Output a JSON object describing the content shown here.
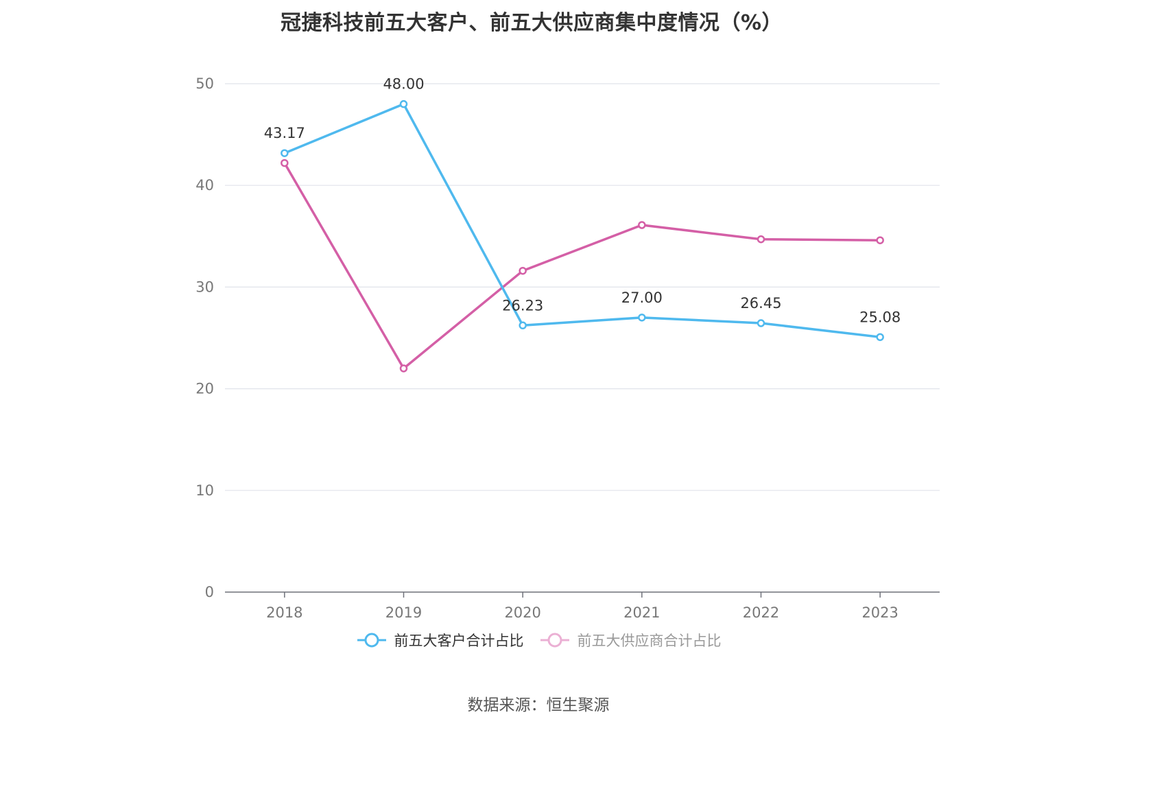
{
  "chart_data": {
    "type": "line",
    "title": "冠捷科技前五大客户、前五大供应商集中度情况（%）",
    "categories": [
      "2018",
      "2019",
      "2020",
      "2021",
      "2022",
      "2023"
    ],
    "series": [
      {
        "name": "前五大客户合计占比",
        "color": "#4fb9ee",
        "values": [
          43.17,
          48.0,
          26.23,
          27.0,
          26.45,
          25.08
        ],
        "labels": [
          "43.17",
          "48.00",
          "26.23",
          "27.00",
          "26.45",
          "25.08"
        ]
      },
      {
        "name": "前五大供应商合计占比",
        "color": "#d45fa6",
        "legend_color": "#ebb0d4",
        "values": [
          42.2,
          22.0,
          31.6,
          36.1,
          34.7,
          34.6
        ]
      }
    ],
    "ylim": [
      0,
      50
    ],
    "yticks": [
      "0",
      "10",
      "20",
      "30",
      "40",
      "50"
    ],
    "grid": true,
    "legend_position": "bottom"
  },
  "source": "数据来源：恒生聚源"
}
